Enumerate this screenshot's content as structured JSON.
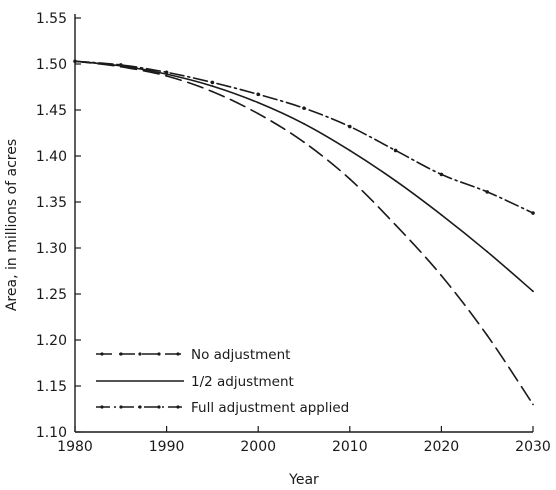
{
  "chart_data": {
    "type": "line",
    "title": "",
    "xlabel": "Year",
    "ylabel": "Area, in millions of acres",
    "xlim": [
      1980,
      2030
    ],
    "ylim": [
      1.1,
      1.55
    ],
    "xticks": [
      1980,
      1990,
      2000,
      2010,
      2020,
      2030
    ],
    "yticks": [
      1.1,
      1.15,
      1.2,
      1.25,
      1.3,
      1.35,
      1.4,
      1.45,
      1.5,
      1.55
    ],
    "xtick_labels": [
      "1980",
      "1990",
      "2000",
      "2010",
      "2020",
      "2030"
    ],
    "ytick_labels": [
      "1.10",
      "1.15",
      "1.20",
      "1.25",
      "1.30",
      "1.35",
      "1.40",
      "1.45",
      "1.50",
      "1.55"
    ],
    "grid": false,
    "legend_position": "bottom-left",
    "x": [
      1980,
      1985,
      1990,
      1995,
      2000,
      2005,
      2010,
      2015,
      2020,
      2025,
      2030
    ],
    "series": [
      {
        "name": "No adjustment",
        "style": "dashed",
        "color": "#1a1a1a",
        "values": [
          1.503,
          1.497,
          1.487,
          1.47,
          1.446,
          1.415,
          1.375,
          1.325,
          1.27,
          1.205,
          1.13
        ]
      },
      {
        "name": "1/2 adjustment",
        "style": "solid",
        "color": "#1a1a1a",
        "values": [
          1.503,
          1.498,
          1.489,
          1.476,
          1.458,
          1.435,
          1.406,
          1.373,
          1.336,
          1.296,
          1.253
        ]
      },
      {
        "name": "Full adjustment applied",
        "style": "dash-dot",
        "color": "#1a1a1a",
        "values": [
          1.503,
          1.499,
          1.491,
          1.48,
          1.467,
          1.452,
          1.432,
          1.406,
          1.38,
          1.361,
          1.338
        ]
      }
    ]
  }
}
